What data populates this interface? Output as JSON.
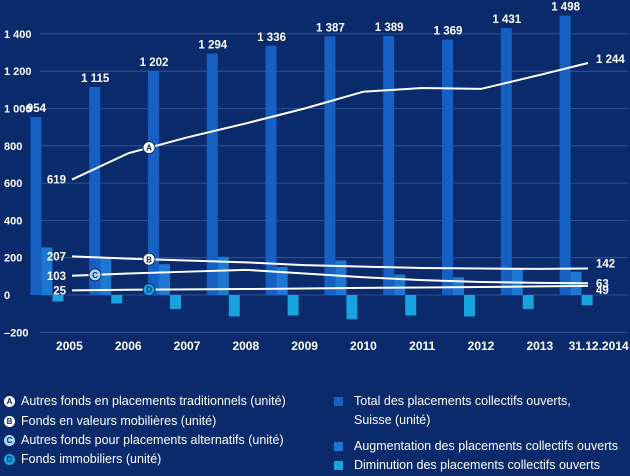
{
  "chart_data": {
    "type": "bar",
    "categories": [
      "2005",
      "2006",
      "2007",
      "2008",
      "2009",
      "2010",
      "2011",
      "2012",
      "2013",
      "31.12.2014"
    ],
    "ylim": [
      -200,
      1500
    ],
    "yticks": [
      "1 400",
      "1 200",
      "1 000",
      "800",
      "600",
      "400",
      "200",
      "0",
      "–200"
    ],
    "ytick_values": [
      1400,
      1200,
      1000,
      800,
      600,
      400,
      200,
      0,
      -200
    ],
    "bar_series": [
      {
        "name": "Total des placements collectifs ouverts, Suisse (unité)",
        "color": "#1660c4",
        "values": [
          954,
          1115,
          1202,
          1294,
          1336,
          1387,
          1389,
          1369,
          1431,
          1498
        ],
        "labels": [
          "954",
          "1 115",
          "1 202",
          "1 294",
          "1 336",
          "1 387",
          "1 389",
          "1 369",
          "1 431",
          "1 498"
        ]
      },
      {
        "name": "Augmentation des placements collectifs ouverts",
        "color": "#1e78d2",
        "values": [
          255,
          195,
          165,
          205,
          150,
          185,
          110,
          95,
          140,
          125
        ]
      },
      {
        "name": "Diminution des placements collectifs ouverts",
        "color": "#16a3de",
        "values": [
          -35,
          -45,
          -75,
          -115,
          -110,
          -130,
          -110,
          -115,
          -75,
          -55
        ]
      }
    ],
    "line_series": [
      {
        "name": "Autres fonds en placements traditionnels (unité)",
        "badge": "A",
        "values": [
          619,
          760,
          845,
          920,
          1000,
          1090,
          1110,
          1105,
          1180,
          1244
        ],
        "start_label": "619",
        "end_label": "1 244"
      },
      {
        "name": "Fonds en valeurs mobilières (unité)",
        "badge": "B",
        "values": [
          207,
          195,
          185,
          175,
          160,
          152,
          145,
          142,
          140,
          142
        ],
        "start_label": "207",
        "end_label": "142"
      },
      {
        "name": "Autres fonds pour placements alternatifs (unité)",
        "badge": "C",
        "values": [
          103,
          115,
          125,
          135,
          115,
          95,
          80,
          70,
          65,
          63
        ],
        "start_label": "103",
        "end_label": "63"
      },
      {
        "name": "Fonds immobiliers (unité)",
        "badge": "D",
        "values": [
          25,
          28,
          30,
          32,
          35,
          38,
          40,
          43,
          46,
          49
        ],
        "start_label": "25",
        "end_label": "49"
      }
    ],
    "grid": true
  },
  "colors": {
    "background": "#0a2a6b",
    "grid": "#3a5aa0",
    "line": "#ffffff",
    "badge_a": "#ffffff",
    "badge_b": "#ffffff",
    "badge_c": "#a9d8f5",
    "badge_d": "#16a3de"
  },
  "legend": {
    "left": [
      {
        "badge": "A",
        "label": "Autres fonds en placements traditionnels (unité)"
      },
      {
        "badge": "B",
        "label": "Fonds en valeurs mobilières (unité)"
      },
      {
        "badge": "C",
        "label": "Autres fonds pour placements alternatifs (unité)"
      },
      {
        "badge": "D",
        "label": "Fonds immobiliers (unité)"
      }
    ],
    "right": [
      {
        "label_line1": "Total des placements collectifs ouverts,",
        "label_line2": "Suisse (unité)"
      },
      {
        "label_line1": "Augmentation des placements collectifs ouverts",
        "label_line2": ""
      },
      {
        "label_line1": "Diminution des placements collectifs ouverts",
        "label_line2": ""
      }
    ]
  }
}
